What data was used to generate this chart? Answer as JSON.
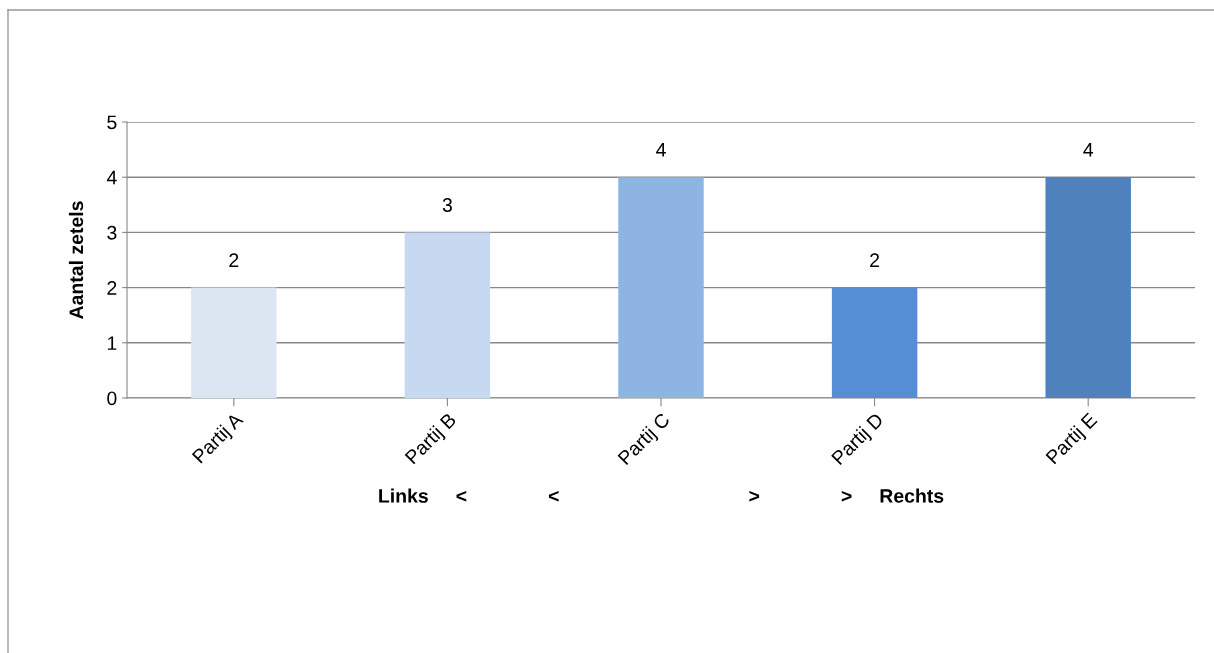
{
  "chart_data": {
    "type": "bar",
    "ylabel": "Aantal zetels",
    "xlabel": "Links     <               <                                   >               >     Rechts",
    "categories": [
      "Partij A",
      "Partij B",
      "Partij C",
      "Partij D",
      "Partij E"
    ],
    "values": [
      2,
      3,
      4,
      2,
      4
    ],
    "colors": [
      "#dce6f2",
      "#c6d9f1",
      "#8eb4e3",
      "#558ed5",
      "#4f81bd"
    ],
    "ylim": [
      0,
      5
    ],
    "yticks": [
      0,
      1,
      2,
      3,
      4,
      5
    ],
    "grid": "y",
    "data_labels": true
  }
}
